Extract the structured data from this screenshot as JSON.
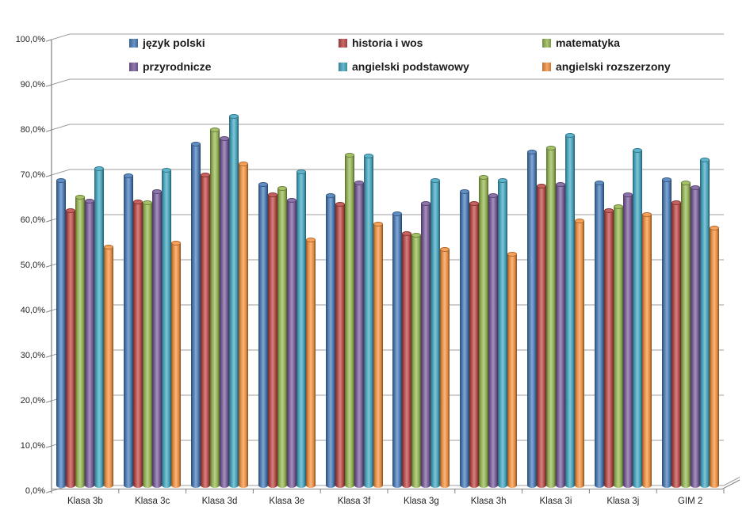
{
  "chart_data": {
    "type": "bar",
    "subtype": "3d-cylinder-clustered",
    "title": "",
    "xlabel": "",
    "ylabel": "",
    "ylim": [
      0,
      100
    ],
    "grid": true,
    "legend_position": "top-inside",
    "y_tick_values": [
      0,
      10,
      20,
      30,
      40,
      50,
      60,
      70,
      80,
      90,
      100
    ],
    "y_tick_labels": [
      "0,0%",
      "10,0%",
      "20,0%",
      "30,0%",
      "40,0%",
      "50,0%",
      "60,0%",
      "70,0%",
      "80,0%",
      "90,0%",
      "100,0%"
    ],
    "categories": [
      "Klasa 3b",
      "Klasa 3c",
      "Klasa 3d",
      "Klasa 3e",
      "Klasa 3f",
      "Klasa 3g",
      "Klasa 3h",
      "Klasa 3i",
      "Klasa 3j",
      "GIM 2"
    ],
    "series": [
      {
        "name": "język polski",
        "color": "#4F81BD",
        "values": [
          68.1,
          69.1,
          76.1,
          67.2,
          64.7,
          60.7,
          65.6,
          74.4,
          67.5,
          68.2
        ]
      },
      {
        "name": "historia i wos",
        "color": "#C0504D",
        "values": [
          61.4,
          63.3,
          69.3,
          65.0,
          62.8,
          56.3,
          63.0,
          66.8,
          61.4,
          63.2
        ]
      },
      {
        "name": "matematyka",
        "color": "#9BBB59",
        "values": [
          64.4,
          63.2,
          79.3,
          66.3,
          73.7,
          56.0,
          68.8,
          75.3,
          62.3,
          67.5
        ]
      },
      {
        "name": "przyrodnicze",
        "color": "#8064A2",
        "values": [
          63.5,
          65.6,
          77.4,
          63.7,
          67.5,
          63.0,
          64.7,
          67.2,
          64.9,
          66.5
        ]
      },
      {
        "name": "angielski podstawowy",
        "color": "#4BACC6",
        "values": [
          70.7,
          70.4,
          82.3,
          70.0,
          73.5,
          68.1,
          68.1,
          78.1,
          74.7,
          72.6
        ]
      },
      {
        "name": "angielski rozszerzony",
        "color": "#F79646",
        "values": [
          53.3,
          54.2,
          71.8,
          54.9,
          58.4,
          52.8,
          51.8,
          59.1,
          60.5,
          57.5
        ]
      }
    ],
    "colors": {
      "gridline": "#9e9e9e",
      "axis": "#808080",
      "tick_text": "#262626",
      "background": "#ffffff"
    }
  }
}
